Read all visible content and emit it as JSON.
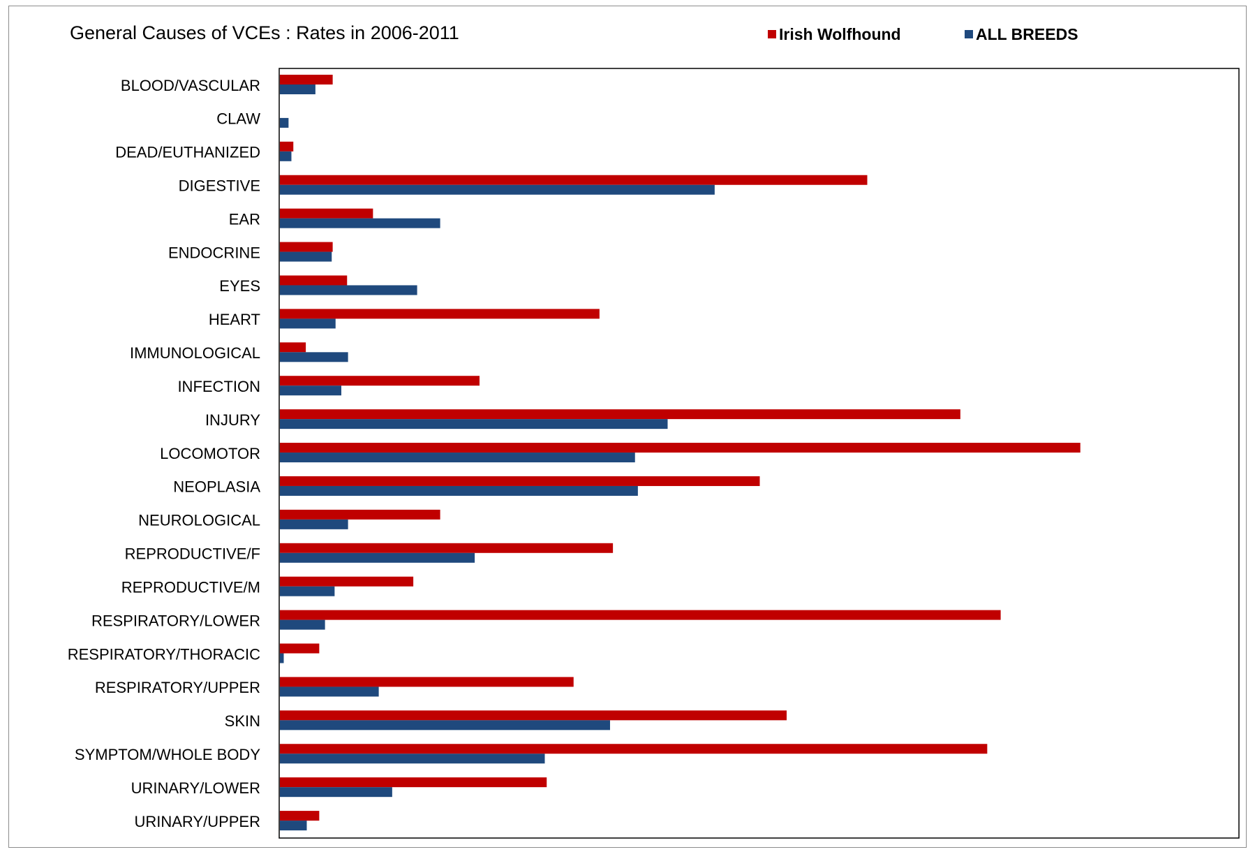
{
  "chart_data": {
    "type": "bar",
    "orientation": "horizontal",
    "title": "General Causes of VCEs : Rates in 2006-2011",
    "legend_position": "top-right",
    "grid": false,
    "xlim": [
      0,
      1000
    ],
    "categories": [
      "BLOOD/VASCULAR",
      "CLAW",
      "DEAD/EUTHANIZED",
      "DIGESTIVE",
      "EAR",
      "ENDOCRINE",
      "EYES",
      "HEART",
      "IMMUNOLOGICAL",
      "INFECTION",
      "INJURY",
      "LOCOMOTOR",
      "NEOPLASIA",
      "NEUROLOGICAL",
      "REPRODUCTIVE/F",
      "REPRODUCTIVE/M",
      "RESPIRATORY/LOWER",
      "RESPIRATORY/THORACIC",
      "RESPIRATORY/UPPER",
      "SKIN",
      "SYMPTOM/WHOLE BODY",
      "URINARY/LOWER",
      "URINARY/UPPER"
    ],
    "series": [
      {
        "name": "Irish Wolfhound",
        "color": "#c00000",
        "values": [
          55,
          0,
          14,
          612,
          97,
          55,
          70,
          333,
          27,
          208,
          709,
          834,
          500,
          167,
          347,
          139,
          751,
          41,
          306,
          528,
          737,
          278,
          41
        ]
      },
      {
        "name": "ALL BREEDS",
        "color": "#1f497d",
        "values": [
          37,
          9,
          12,
          453,
          167,
          54,
          143,
          58,
          71,
          64,
          404,
          370,
          373,
          71,
          203,
          57,
          47,
          4,
          103,
          344,
          276,
          117,
          28
        ]
      }
    ]
  }
}
